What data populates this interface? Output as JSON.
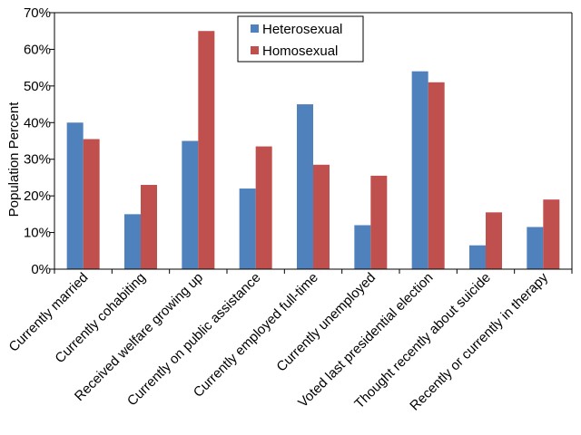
{
  "chart_data": {
    "type": "bar",
    "title": "",
    "xlabel": "",
    "ylabel": "Population Percent",
    "ylim": [
      0,
      70
    ],
    "y_ticks": [
      "0%",
      "10%",
      "20%",
      "30%",
      "40%",
      "50%",
      "60%",
      "70%"
    ],
    "y_tick_values": [
      0,
      10,
      20,
      30,
      40,
      50,
      60,
      70
    ],
    "grid": false,
    "legend_position": "top-center",
    "categories": [
      "Currently married",
      "Currently cohabiting",
      "Received welfare growing up",
      "Currently on public assistance",
      "Currently employed full-time",
      "Currently unemployed",
      "Voted last presidential election",
      "Thought recently about suicide",
      "Recently or currently in therapy"
    ],
    "series": [
      {
        "name": "Heterosexual",
        "color": "#4F81BD",
        "values": [
          40,
          15,
          35,
          22,
          45,
          12,
          54,
          6.5,
          11.5
        ]
      },
      {
        "name": "Homosexual",
        "color": "#C0504D",
        "values": [
          35.5,
          23,
          65,
          33.5,
          28.5,
          25.5,
          51,
          15.5,
          19
        ]
      }
    ]
  }
}
